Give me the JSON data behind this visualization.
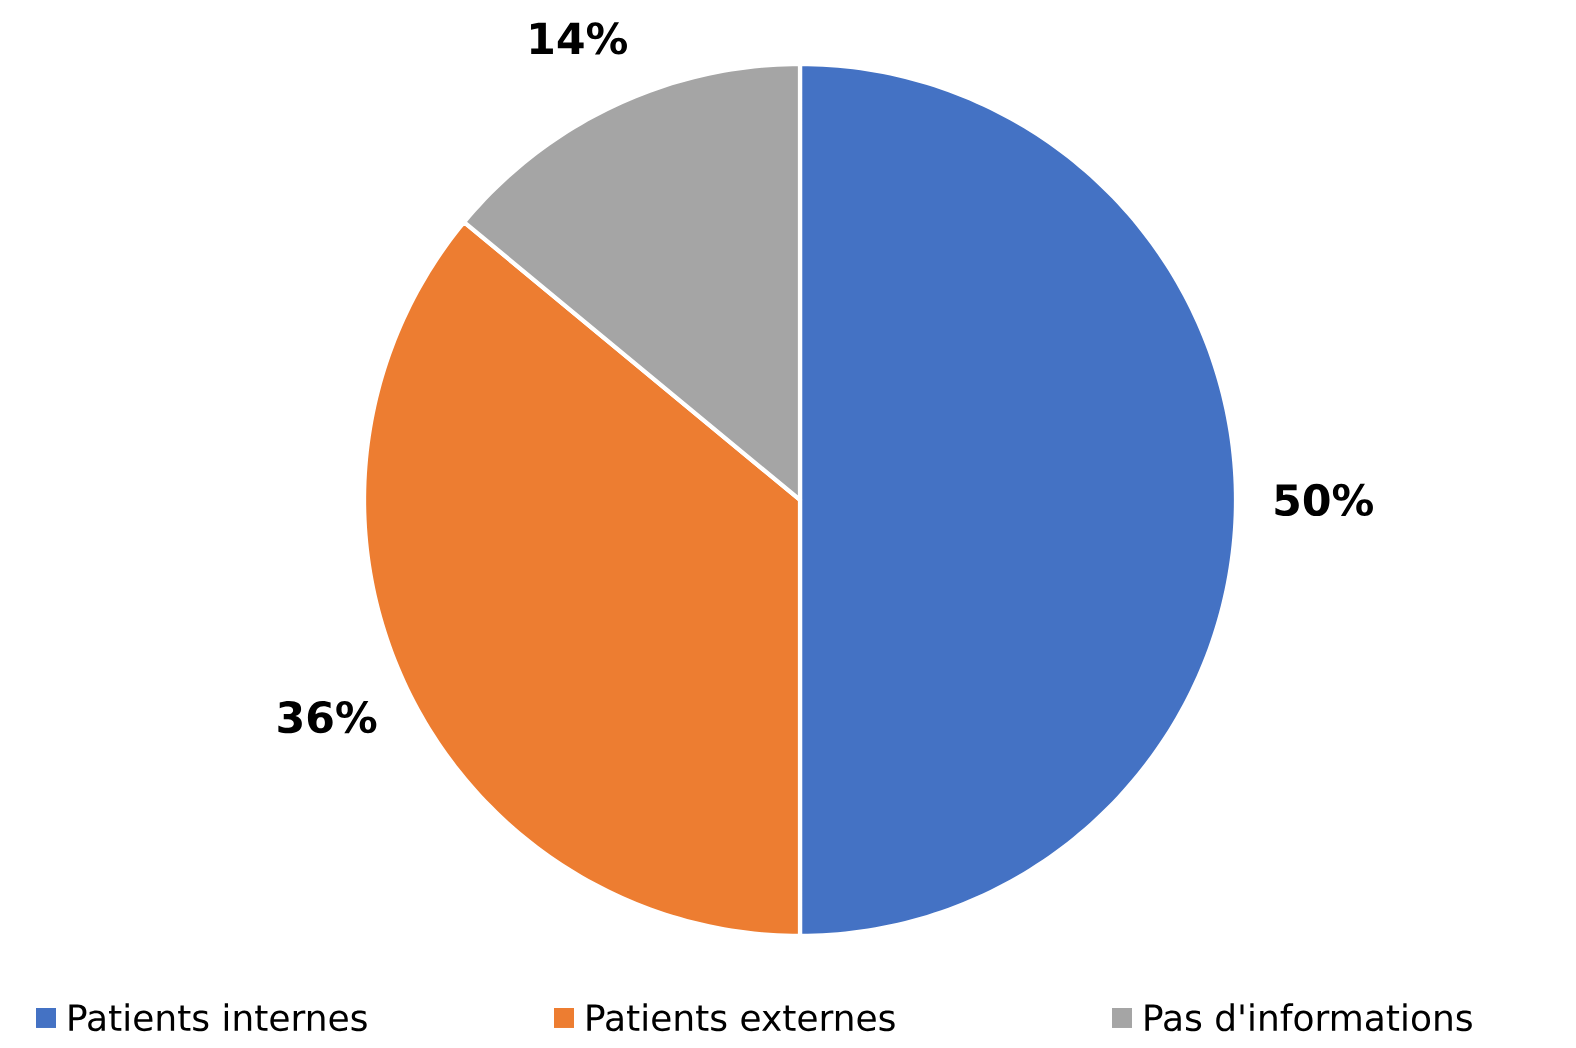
{
  "chart_data": {
    "type": "pie",
    "categories": [
      "Patients internes",
      "Patients externes",
      "Pas d'informations"
    ],
    "values": [
      50,
      36,
      14
    ],
    "colors": [
      "#4472c4",
      "#ed7d31",
      "#a5a5a5"
    ],
    "value_labels": [
      "50%",
      "36%",
      "14%"
    ],
    "legend": "bottom"
  }
}
